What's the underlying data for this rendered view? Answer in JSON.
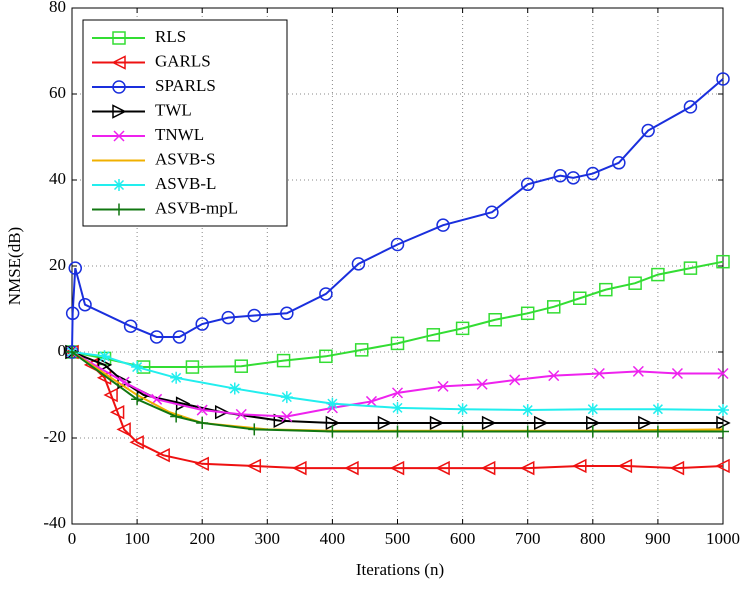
{
  "chart_data": {
    "type": "line",
    "xlabel": "Iterations (n)",
    "ylabel": "NMSE(dB)",
    "xlim": [
      0,
      1000
    ],
    "ylim": [
      -40,
      80
    ],
    "xticks": [
      0,
      100,
      200,
      300,
      400,
      500,
      600,
      700,
      800,
      900,
      1000
    ],
    "yticks": [
      -40,
      -20,
      0,
      20,
      40,
      60,
      80
    ],
    "grid": true,
    "legend": "upper-left",
    "series": [
      {
        "name": "RLS",
        "color": "#33dd33",
        "marker": "square",
        "x": [
          0,
          50,
          110,
          185,
          260,
          325,
          390,
          445,
          500,
          555,
          600,
          650,
          700,
          740,
          780,
          820,
          865,
          900,
          950,
          1000
        ],
        "values": [
          0,
          -1.5,
          -3.5,
          -3.5,
          -3.3,
          -2,
          -1,
          0.5,
          2,
          4,
          5.5,
          7.5,
          9,
          10.5,
          12.5,
          14.5,
          16,
          18,
          19.5,
          21
        ]
      },
      {
        "name": "GARLS",
        "color": "#ee1111",
        "marker": "triangle-left",
        "x": [
          0,
          30,
          50,
          60,
          70,
          80,
          100,
          140,
          200,
          280,
          350,
          430,
          500,
          570,
          640,
          700,
          780,
          850,
          930,
          1000
        ],
        "values": [
          0,
          -3,
          -6,
          -10,
          -14,
          -18,
          -21,
          -24,
          -26,
          -26.5,
          -27,
          -27,
          -27,
          -27,
          -27,
          -27,
          -26.5,
          -26.5,
          -27,
          -26.5
        ]
      },
      {
        "name": "SPARLS",
        "color": "#1a2fdd",
        "marker": "circle",
        "x": [
          0,
          1,
          5,
          20,
          90,
          130,
          165,
          200,
          240,
          280,
          330,
          390,
          440,
          500,
          570,
          645,
          700,
          750,
          770,
          800,
          840,
          885,
          950,
          1000
        ],
        "values": [
          0,
          9,
          19.5,
          11,
          6,
          3.5,
          3.5,
          6.5,
          8,
          8.5,
          9,
          13.5,
          20.5,
          25,
          29.5,
          32.5,
          39,
          41,
          40.5,
          41.5,
          44,
          51.5,
          57,
          63.5
        ]
      },
      {
        "name": "TWL",
        "color": "#000000",
        "marker": "triangle-right",
        "x": [
          0,
          50,
          80,
          110,
          170,
          230,
          320,
          400,
          480,
          560,
          640,
          720,
          800,
          880,
          1000
        ],
        "values": [
          0,
          -3,
          -7,
          -10,
          -12,
          -14,
          -16,
          -16.5,
          -16.5,
          -16.5,
          -16.5,
          -16.5,
          -16.5,
          -16.5,
          -16.5
        ]
      },
      {
        "name": "TNWL",
        "color": "#ee22ee",
        "marker": "x",
        "x": [
          0,
          80,
          130,
          200,
          260,
          330,
          400,
          460,
          500,
          570,
          630,
          680,
          740,
          810,
          870,
          930,
          1000
        ],
        "values": [
          0,
          -7,
          -11,
          -13.5,
          -14.5,
          -15,
          -13,
          -11.5,
          -9.5,
          -8,
          -7.5,
          -6.5,
          -5.5,
          -5,
          -4.5,
          -5,
          -5
        ]
      },
      {
        "name": "ASVB-S",
        "color": "#f0b000",
        "marker": "none",
        "x": [
          0,
          100,
          150,
          200,
          300,
          400,
          600,
          800,
          1000
        ],
        "values": [
          0,
          -10,
          -14,
          -16.5,
          -18,
          -18.3,
          -18.3,
          -18.3,
          -18
        ]
      },
      {
        "name": "ASVB-L",
        "color": "#22eeee",
        "marker": "asterisk",
        "x": [
          0,
          50,
          100,
          160,
          250,
          330,
          400,
          500,
          600,
          700,
          800,
          900,
          1000
        ],
        "values": [
          0,
          -1,
          -3.5,
          -6,
          -8.5,
          -10.5,
          -12,
          -13,
          -13.3,
          -13.5,
          -13.3,
          -13.3,
          -13.5
        ]
      },
      {
        "name": "ASVB-mpL",
        "color": "#117711",
        "marker": "plus",
        "x": [
          0,
          100,
          160,
          200,
          280,
          400,
          500,
          600,
          700,
          800,
          900,
          1000
        ],
        "values": [
          0,
          -11,
          -15,
          -16.5,
          -18,
          -18.5,
          -18.5,
          -18.5,
          -18.5,
          -18.5,
          -18.5,
          -18.5
        ]
      }
    ]
  }
}
